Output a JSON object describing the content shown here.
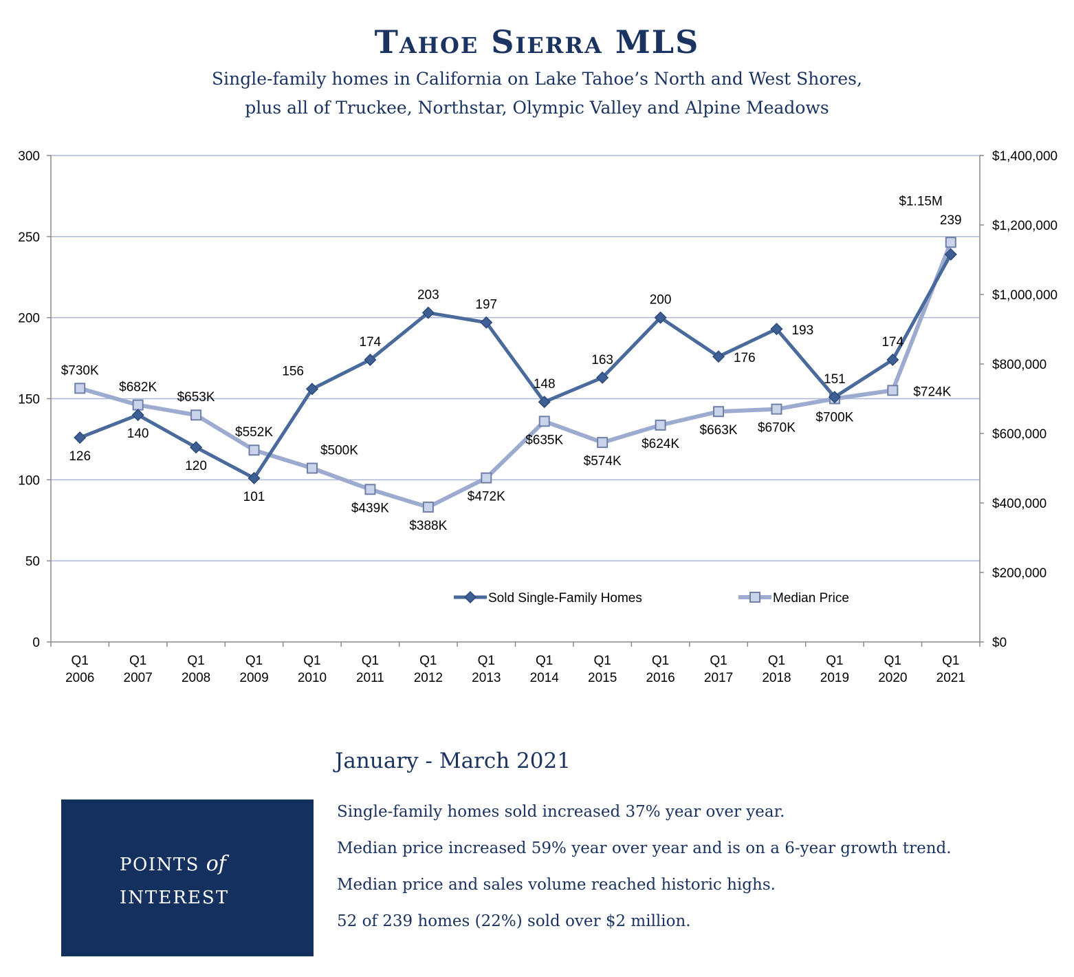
{
  "header": {
    "title": "Tahoe Sierra MLS",
    "subtitle_line1": "Single-family homes in California on Lake Tahoe’s North and West Shores,",
    "subtitle_line2": "plus all of Truckee, Northstar, Olympic Valley and Alpine Meadows"
  },
  "chart_data": {
    "type": "line",
    "categories": [
      "Q1 2006",
      "Q1 2007",
      "Q1 2008",
      "Q1 2009",
      "Q1 2010",
      "Q1 2011",
      "Q1 2012",
      "Q1 2013",
      "Q1 2014",
      "Q1 2015",
      "Q1 2016",
      "Q1 2017",
      "Q1 2018",
      "Q1 2019",
      "Q1 2020",
      "Q1 2021"
    ],
    "category_lines": [
      [
        "Q1",
        "2006"
      ],
      [
        "Q1",
        "2007"
      ],
      [
        "Q1",
        "2008"
      ],
      [
        "Q1",
        "2009"
      ],
      [
        "Q1",
        "2010"
      ],
      [
        "Q1",
        "2011"
      ],
      [
        "Q1",
        "2012"
      ],
      [
        "Q1",
        "2013"
      ],
      [
        "Q1",
        "2014"
      ],
      [
        "Q1",
        "2015"
      ],
      [
        "Q1",
        "2016"
      ],
      [
        "Q1",
        "2017"
      ],
      [
        "Q1",
        "2018"
      ],
      [
        "Q1",
        "2019"
      ],
      [
        "Q1",
        "2020"
      ],
      [
        "Q1",
        "2021"
      ]
    ],
    "y_left": {
      "min": 0,
      "max": 300,
      "ticks": [
        0,
        50,
        100,
        150,
        200,
        250,
        300
      ],
      "tick_labels": [
        "0",
        "50",
        "100",
        "150",
        "200",
        "250",
        "300"
      ]
    },
    "y_right": {
      "min": 0,
      "max": 1400000,
      "ticks": [
        0,
        200000,
        400000,
        600000,
        800000,
        1000000,
        1200000,
        1400000
      ],
      "tick_labels": [
        "$0",
        "$200,000",
        "$400,000",
        "$600,000",
        "$800,000",
        "$1,000,000",
        "$1,200,000",
        "$1,400,000"
      ]
    },
    "grid": true,
    "legend_position": "bottom-center",
    "series": [
      {
        "name": "Sold Single-Family Homes",
        "axis": "left",
        "color": "#4a6a9c",
        "marker": "diamond",
        "values": [
          126,
          140,
          120,
          101,
          156,
          174,
          203,
          197,
          148,
          163,
          200,
          176,
          193,
          151,
          174,
          239
        ],
        "labels": [
          "126",
          "140",
          "120",
          "101",
          "156",
          "174",
          "203",
          "197",
          "148",
          "163",
          "200",
          "176",
          "193",
          "151",
          "174",
          "239"
        ],
        "label_pos": [
          "below",
          "below",
          "below",
          "below",
          "above-left",
          "above",
          "above",
          "above",
          "above",
          "above",
          "above",
          "right",
          "right",
          "above",
          "above",
          "above"
        ]
      },
      {
        "name": "Median Price",
        "axis": "right",
        "color": "#9eabd0",
        "marker": "square",
        "values": [
          730000,
          682000,
          653000,
          552000,
          500000,
          439000,
          388000,
          472000,
          635000,
          574000,
          624000,
          663000,
          670000,
          700000,
          724000,
          1150000
        ],
        "labels": [
          "$730K",
          "$682K",
          "$653K",
          "$552K",
          "$500K",
          "$439K",
          "$388K",
          "$472K",
          "$635K",
          "$574K",
          "$624K",
          "$663K",
          "$670K",
          "$700K",
          "$724K",
          "$1.15M"
        ],
        "label_pos": [
          "above",
          "above",
          "above",
          "above",
          "above-right",
          "below",
          "below",
          "below",
          "below",
          "below",
          "below",
          "below",
          "below",
          "below",
          "right",
          "above-left"
        ]
      }
    ]
  },
  "summary": {
    "heading": "January - March 2021",
    "box_line1_a": "POINTS",
    "box_line1_b": "of",
    "box_line2": "INTEREST",
    "points": [
      "Single-family homes sold increased 37% year over year.",
      "Median price increased 59% year over year and is on a 6-year growth trend.",
      "Median price and sales volume reached historic highs.",
      "52 of 239 homes (22%) sold over $2 million."
    ]
  }
}
